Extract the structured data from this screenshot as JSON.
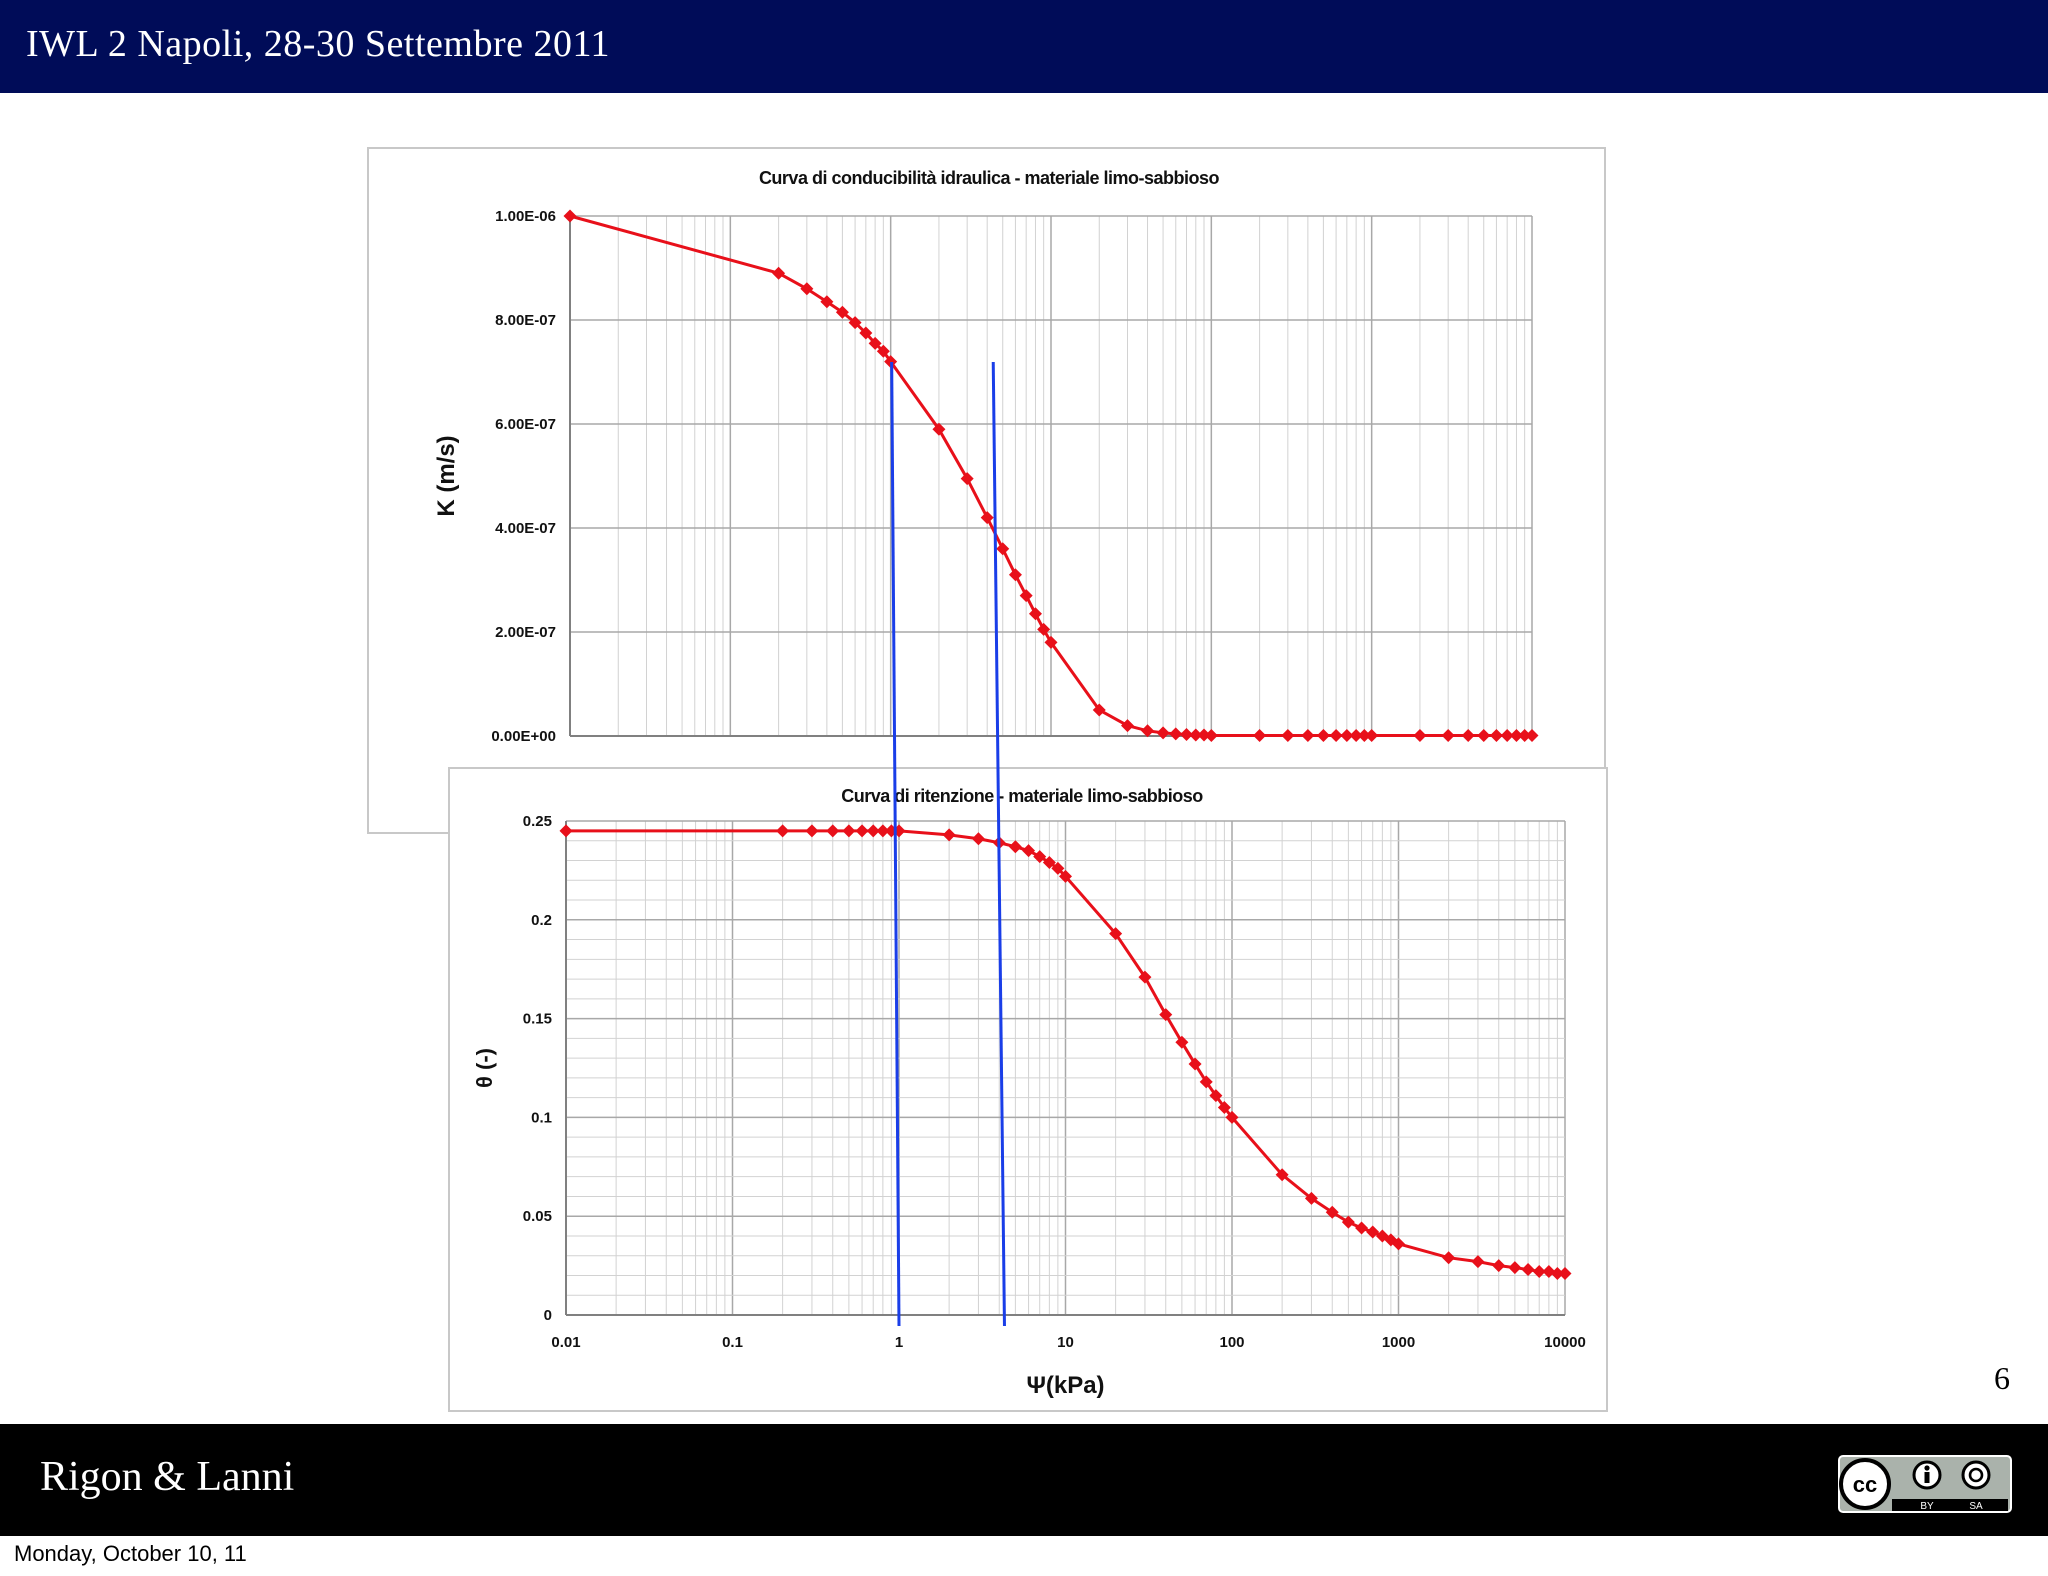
{
  "header": {
    "title": "IWL 2 Napoli, 28-30 Settembre 2011",
    "color": "#000c58"
  },
  "footer": {
    "authors": "Rigon & Lanni",
    "license": {
      "by": "BY",
      "sa": "SA",
      "cc": "cc"
    }
  },
  "page_number": "6",
  "date": "Monday, October 10, 11",
  "chart_data": [
    {
      "type": "line",
      "title": "Curva di conducibilità idraulica - materiale limo-sabbioso",
      "xlabel": "",
      "ylabel": "K (m/s)",
      "x_scale": "log",
      "xlim": [
        0.01,
        10000
      ],
      "ylim": [
        0,
        1e-06
      ],
      "ytick_labels": [
        "0.00E+00",
        "2.00E-07",
        "4.00E-07",
        "6.00E-07",
        "8.00E-07",
        "1.00E-06"
      ],
      "ytick_values": [
        0,
        2e-07,
        4e-07,
        6e-07,
        8e-07,
        1e-06
      ],
      "grid": true,
      "color": "#e8101a",
      "series": [
        {
          "x": [
            0.01,
            0.2,
            0.3,
            0.4,
            0.5,
            0.6,
            0.7,
            0.8,
            0.9,
            1,
            2,
            3,
            4,
            5,
            6,
            7,
            8,
            9,
            10,
            20,
            30,
            40,
            50,
            60,
            70,
            80,
            90,
            100,
            200,
            300,
            400,
            500,
            600,
            700,
            800,
            900,
            1000,
            2000,
            3000,
            4000,
            5000,
            6000,
            7000,
            8000,
            9000,
            10000
          ],
          "y": [
            1e-06,
            8.9e-07,
            8.6e-07,
            8.35e-07,
            8.15e-07,
            7.95e-07,
            7.75e-07,
            7.55e-07,
            7.4e-07,
            7.2e-07,
            5.9e-07,
            4.95e-07,
            4.2e-07,
            3.6e-07,
            3.1e-07,
            2.7e-07,
            2.35e-07,
            2.05e-07,
            1.8e-07,
            5e-08,
            2e-08,
            1e-08,
            6e-09,
            4e-09,
            3e-09,
            2e-09,
            2e-09,
            1e-09,
            1e-09,
            1e-09,
            1e-09,
            1e-09,
            1e-09,
            1e-09,
            1e-09,
            1e-09,
            1e-09,
            1e-09,
            1e-09,
            1e-09,
            1e-09,
            1e-09,
            1e-09,
            1e-09,
            1e-09,
            1e-09
          ]
        }
      ]
    },
    {
      "type": "line",
      "title": "Curva di ritenzione - materiale limo-sabbioso",
      "xlabel": "Ψ(kPa)",
      "ylabel": "θ (-)",
      "x_scale": "log",
      "xlim": [
        0.01,
        10000
      ],
      "ylim": [
        0,
        0.25
      ],
      "xtick_labels": [
        "0.01",
        "0.1",
        "1",
        "10",
        "100",
        "1000",
        "10000"
      ],
      "xtick_values": [
        0.01,
        0.1,
        1,
        10,
        100,
        1000,
        10000
      ],
      "ytick_labels": [
        "0",
        "0.05",
        "0.1",
        "0.15",
        "0.2",
        "0.25"
      ],
      "ytick_values": [
        0,
        0.05,
        0.1,
        0.15,
        0.2,
        0.25
      ],
      "grid": true,
      "color": "#e8101a",
      "series": [
        {
          "x": [
            0.01,
            0.2,
            0.3,
            0.4,
            0.5,
            0.6,
            0.7,
            0.8,
            0.9,
            1,
            2,
            3,
            4,
            5,
            6,
            7,
            8,
            9,
            10,
            20,
            30,
            40,
            50,
            60,
            70,
            80,
            90,
            100,
            200,
            300,
            400,
            500,
            600,
            700,
            800,
            900,
            1000,
            2000,
            3000,
            4000,
            5000,
            6000,
            7000,
            8000,
            9000,
            10000
          ],
          "y": [
            0.245,
            0.245,
            0.245,
            0.245,
            0.245,
            0.245,
            0.245,
            0.245,
            0.245,
            0.245,
            0.243,
            0.241,
            0.239,
            0.237,
            0.235,
            0.232,
            0.229,
            0.226,
            0.222,
            0.193,
            0.171,
            0.152,
            0.138,
            0.127,
            0.118,
            0.111,
            0.105,
            0.1,
            0.071,
            0.059,
            0.052,
            0.047,
            0.044,
            0.042,
            0.04,
            0.038,
            0.036,
            0.029,
            0.027,
            0.025,
            0.024,
            0.023,
            0.022,
            0.022,
            0.021,
            0.021
          ]
        }
      ]
    }
  ],
  "markers": {
    "psi_values": [
      1,
      4.3
    ],
    "color": "#1a3ee8"
  }
}
